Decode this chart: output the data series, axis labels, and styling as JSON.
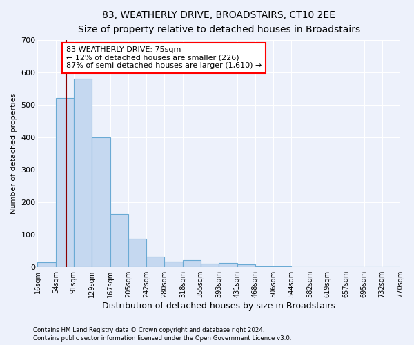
{
  "title1": "83, WEATHERLY DRIVE, BROADSTAIRS, CT10 2EE",
  "title2": "Size of property relative to detached houses in Broadstairs",
  "xlabel": "Distribution of detached houses by size in Broadstairs",
  "ylabel": "Number of detached properties",
  "bar_color": "#c5d8f0",
  "bar_edge_color": "#6aaad4",
  "bar_heights": [
    15,
    520,
    580,
    400,
    165,
    87,
    33,
    18,
    22,
    11,
    13,
    8,
    3,
    2,
    1,
    0,
    0,
    0,
    0,
    0
  ],
  "bin_edges": [
    16,
    54,
    91,
    129,
    167,
    205,
    242,
    280,
    318,
    355,
    393,
    431,
    468,
    506,
    544,
    582,
    619,
    657,
    695,
    732,
    770
  ],
  "bin_labels": [
    "16sqm",
    "54sqm",
    "91sqm",
    "129sqm",
    "167sqm",
    "205sqm",
    "242sqm",
    "280sqm",
    "318sqm",
    "355sqm",
    "393sqm",
    "431sqm",
    "468sqm",
    "506sqm",
    "544sqm",
    "582sqm",
    "619sqm",
    "657sqm",
    "695sqm",
    "732sqm",
    "770sqm"
  ],
  "ylim": [
    0,
    700
  ],
  "yticks": [
    0,
    100,
    200,
    300,
    400,
    500,
    600,
    700
  ],
  "vline_x": 75,
  "vline_color": "#8b0000",
  "annotation_text": "83 WEATHERLY DRIVE: 75sqm\n← 12% of detached houses are smaller (226)\n87% of semi-detached houses are larger (1,610) →",
  "annotation_box_facecolor": "white",
  "annotation_box_edgecolor": "red",
  "background_color": "#edf1fb",
  "grid_color": "white",
  "footer1": "Contains HM Land Registry data © Crown copyright and database right 2024.",
  "footer2": "Contains public sector information licensed under the Open Government Licence v3.0."
}
